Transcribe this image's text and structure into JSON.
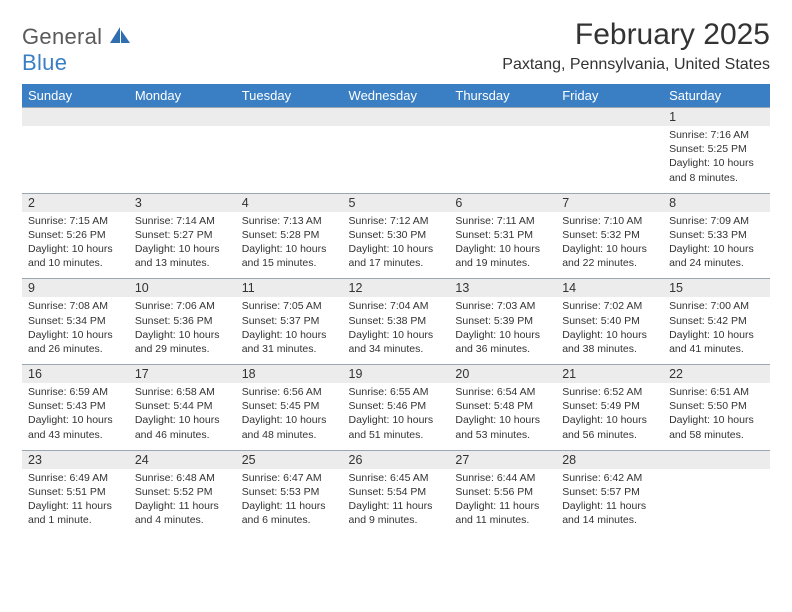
{
  "logo": {
    "word1": "General",
    "word2": "Blue"
  },
  "colors": {
    "header_bg": "#3a7fc4",
    "header_text": "#ffffff",
    "daynum_bg": "#ececec",
    "border": "#9aa6b2",
    "body_text": "#333333",
    "logo_gray": "#5a5a5a",
    "logo_blue": "#3a7fc4"
  },
  "title": "February 2025",
  "location": "Paxtang, Pennsylvania, United States",
  "day_names": [
    "Sunday",
    "Monday",
    "Tuesday",
    "Wednesday",
    "Thursday",
    "Friday",
    "Saturday"
  ],
  "weeks": [
    [
      null,
      null,
      null,
      null,
      null,
      null,
      {
        "d": "1",
        "sr": "7:16 AM",
        "ss": "5:25 PM",
        "dl": "10 hours and 8 minutes."
      }
    ],
    [
      {
        "d": "2",
        "sr": "7:15 AM",
        "ss": "5:26 PM",
        "dl": "10 hours and 10 minutes."
      },
      {
        "d": "3",
        "sr": "7:14 AM",
        "ss": "5:27 PM",
        "dl": "10 hours and 13 minutes."
      },
      {
        "d": "4",
        "sr": "7:13 AM",
        "ss": "5:28 PM",
        "dl": "10 hours and 15 minutes."
      },
      {
        "d": "5",
        "sr": "7:12 AM",
        "ss": "5:30 PM",
        "dl": "10 hours and 17 minutes."
      },
      {
        "d": "6",
        "sr": "7:11 AM",
        "ss": "5:31 PM",
        "dl": "10 hours and 19 minutes."
      },
      {
        "d": "7",
        "sr": "7:10 AM",
        "ss": "5:32 PM",
        "dl": "10 hours and 22 minutes."
      },
      {
        "d": "8",
        "sr": "7:09 AM",
        "ss": "5:33 PM",
        "dl": "10 hours and 24 minutes."
      }
    ],
    [
      {
        "d": "9",
        "sr": "7:08 AM",
        "ss": "5:34 PM",
        "dl": "10 hours and 26 minutes."
      },
      {
        "d": "10",
        "sr": "7:06 AM",
        "ss": "5:36 PM",
        "dl": "10 hours and 29 minutes."
      },
      {
        "d": "11",
        "sr": "7:05 AM",
        "ss": "5:37 PM",
        "dl": "10 hours and 31 minutes."
      },
      {
        "d": "12",
        "sr": "7:04 AM",
        "ss": "5:38 PM",
        "dl": "10 hours and 34 minutes."
      },
      {
        "d": "13",
        "sr": "7:03 AM",
        "ss": "5:39 PM",
        "dl": "10 hours and 36 minutes."
      },
      {
        "d": "14",
        "sr": "7:02 AM",
        "ss": "5:40 PM",
        "dl": "10 hours and 38 minutes."
      },
      {
        "d": "15",
        "sr": "7:00 AM",
        "ss": "5:42 PM",
        "dl": "10 hours and 41 minutes."
      }
    ],
    [
      {
        "d": "16",
        "sr": "6:59 AM",
        "ss": "5:43 PM",
        "dl": "10 hours and 43 minutes."
      },
      {
        "d": "17",
        "sr": "6:58 AM",
        "ss": "5:44 PM",
        "dl": "10 hours and 46 minutes."
      },
      {
        "d": "18",
        "sr": "6:56 AM",
        "ss": "5:45 PM",
        "dl": "10 hours and 48 minutes."
      },
      {
        "d": "19",
        "sr": "6:55 AM",
        "ss": "5:46 PM",
        "dl": "10 hours and 51 minutes."
      },
      {
        "d": "20",
        "sr": "6:54 AM",
        "ss": "5:48 PM",
        "dl": "10 hours and 53 minutes."
      },
      {
        "d": "21",
        "sr": "6:52 AM",
        "ss": "5:49 PM",
        "dl": "10 hours and 56 minutes."
      },
      {
        "d": "22",
        "sr": "6:51 AM",
        "ss": "5:50 PM",
        "dl": "10 hours and 58 minutes."
      }
    ],
    [
      {
        "d": "23",
        "sr": "6:49 AM",
        "ss": "5:51 PM",
        "dl": "11 hours and 1 minute."
      },
      {
        "d": "24",
        "sr": "6:48 AM",
        "ss": "5:52 PM",
        "dl": "11 hours and 4 minutes."
      },
      {
        "d": "25",
        "sr": "6:47 AM",
        "ss": "5:53 PM",
        "dl": "11 hours and 6 minutes."
      },
      {
        "d": "26",
        "sr": "6:45 AM",
        "ss": "5:54 PM",
        "dl": "11 hours and 9 minutes."
      },
      {
        "d": "27",
        "sr": "6:44 AM",
        "ss": "5:56 PM",
        "dl": "11 hours and 11 minutes."
      },
      {
        "d": "28",
        "sr": "6:42 AM",
        "ss": "5:57 PM",
        "dl": "11 hours and 14 minutes."
      },
      null
    ]
  ],
  "labels": {
    "sunrise": "Sunrise:",
    "sunset": "Sunset:",
    "daylight": "Daylight:"
  }
}
